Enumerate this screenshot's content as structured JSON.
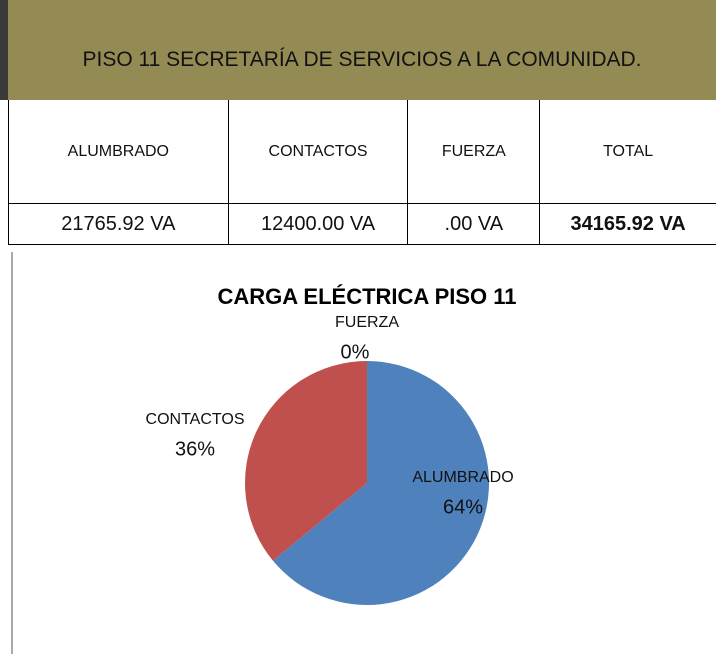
{
  "header": {
    "title": "PISO 11 SECRETARÍA DE SERVICIOS A LA COMUNIDAD."
  },
  "table": {
    "header": [
      "ALUMBRADO",
      "CONTACTOS",
      "FUERZA",
      "TOTAL"
    ],
    "rows": [
      [
        "21765.92 VA",
        "12400.00 VA",
        ".00 VA",
        "34165.92 VA"
      ]
    ]
  },
  "chart_data": {
    "type": "pie",
    "title": "CARGA ELÉCTRICA PISO 11",
    "categories": [
      "ALUMBRADO",
      "CONTACTOS",
      "FUERZA"
    ],
    "values": [
      64,
      36,
      0
    ],
    "value_labels": [
      "64%",
      "36%",
      "0%"
    ],
    "colors": [
      "#4f81bd",
      "#c0504d",
      "#9bbb59"
    ]
  }
}
